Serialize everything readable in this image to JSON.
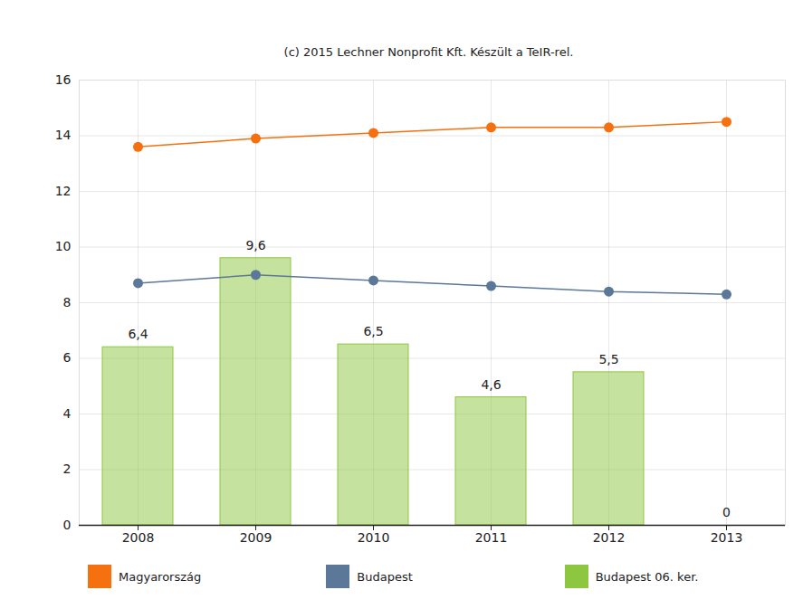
{
  "chart_data": {
    "type": "bar",
    "title": "(c) 2015 Lechner Nonprofit Kft. Készült a TeIR-rel.",
    "categories": [
      "2008",
      "2009",
      "2010",
      "2011",
      "2012",
      "2013"
    ],
    "series": [
      {
        "name": "Magyarország",
        "type": "line",
        "color": "#f5700f",
        "marker": "circle",
        "values": [
          13.6,
          13.9,
          14.1,
          14.3,
          14.3,
          14.5
        ]
      },
      {
        "name": "Budapest",
        "type": "line",
        "color": "#5b7899",
        "marker": "circle",
        "values": [
          8.7,
          9.0,
          8.8,
          8.6,
          8.4,
          8.3
        ]
      },
      {
        "name": "Budapest 06. ker.",
        "type": "bar",
        "color": "#8dc63f",
        "data_labels": true,
        "values": [
          6.4,
          9.6,
          6.5,
          4.6,
          5.5,
          0
        ],
        "value_labels": [
          "6,4",
          "9,6",
          "6,5",
          "4,6",
          "5,5",
          "0"
        ]
      }
    ],
    "ylim": [
      0,
      16
    ],
    "yticks": [
      0,
      2,
      4,
      6,
      8,
      10,
      12,
      14,
      16
    ],
    "grid": true,
    "legend": "bottom"
  }
}
